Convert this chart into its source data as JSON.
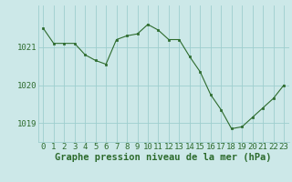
{
  "x": [
    0,
    1,
    2,
    3,
    4,
    5,
    6,
    7,
    8,
    9,
    10,
    11,
    12,
    13,
    14,
    15,
    16,
    17,
    18,
    19,
    20,
    21,
    22,
    23
  ],
  "y": [
    1021.5,
    1021.1,
    1021.1,
    1021.1,
    1020.8,
    1020.65,
    1020.55,
    1021.2,
    1021.3,
    1021.35,
    1021.6,
    1021.45,
    1021.2,
    1021.2,
    1020.75,
    1020.35,
    1019.75,
    1019.35,
    1018.85,
    1018.9,
    1019.15,
    1019.4,
    1019.65,
    1020.0
  ],
  "line_color": "#2d6b2d",
  "marker_color": "#2d6b2d",
  "bg_color": "#cce8e8",
  "grid_color": "#9ecece",
  "label_color": "#2d6b2d",
  "xlabel": "Graphe pression niveau de la mer (hPa)",
  "yticks": [
    1019,
    1020,
    1021
  ],
  "xlim": [
    -0.5,
    23.5
  ],
  "ylim": [
    1018.5,
    1022.1
  ],
  "tick_fontsize": 6.5,
  "xlabel_fontsize": 7.5
}
